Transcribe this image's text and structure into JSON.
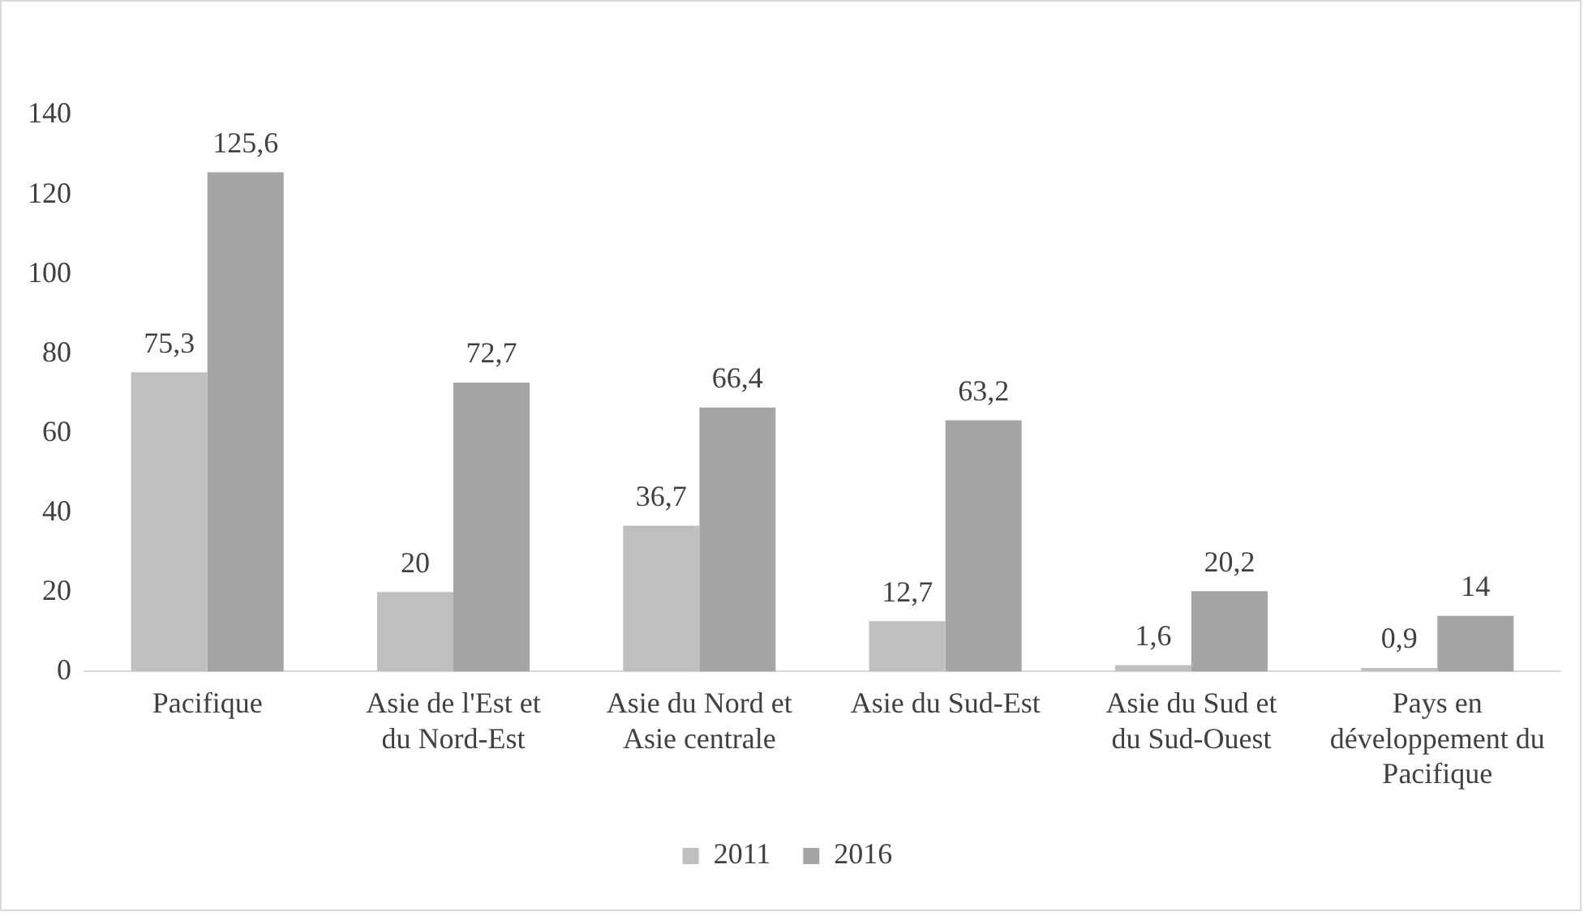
{
  "chart_data": {
    "type": "bar",
    "categories": [
      "Pacifique",
      "Asie de l'Est et du Nord-Est",
      "Asie du Nord et Asie centrale",
      "Asie du Sud-Est",
      "Asie du Sud et du Sud-Ouest",
      "Pays en développement du Pacifique"
    ],
    "series": [
      {
        "name": "2011",
        "color": "#bfbfbf",
        "values": [
          75.3,
          20,
          36.7,
          12.7,
          1.6,
          0.9
        ],
        "value_labels": [
          "75,3",
          "20",
          "36,7",
          "12,7",
          "1,6",
          "0,9"
        ]
      },
      {
        "name": "2016",
        "color": "#a5a5a5",
        "values": [
          125.6,
          72.7,
          66.4,
          63.2,
          20.2,
          14
        ],
        "value_labels": [
          "125,6",
          "72,7",
          "66,4",
          "63,2",
          "20,2",
          "14"
        ]
      }
    ],
    "ylim": [
      0,
      140
    ],
    "yticks": [
      0,
      20,
      40,
      60,
      80,
      100,
      120,
      140
    ],
    "grid": false,
    "legend": "bottom"
  }
}
